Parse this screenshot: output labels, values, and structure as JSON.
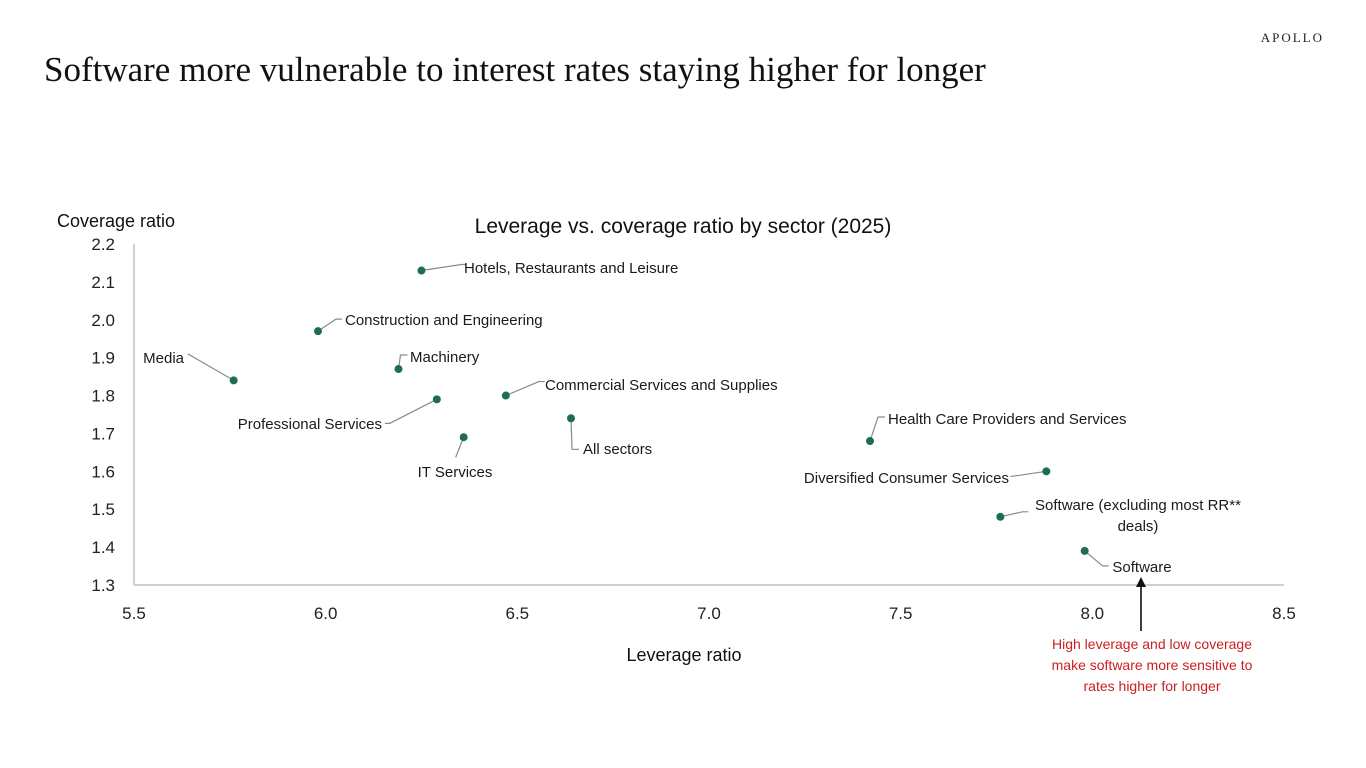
{
  "brand": "APOLLO",
  "page_title": "Software more vulnerable to interest rates staying higher for longer",
  "colors": {
    "point": "#1e6b5a",
    "leader": "#8a8a8a",
    "axis": "#bfbfbf",
    "note": "#cc1e1e"
  },
  "chart_data": {
    "type": "scatter",
    "title": "Leverage vs. coverage ratio by sector (2025)",
    "xlabel": "Leverage ratio",
    "ylabel": "Coverage ratio",
    "xlim": [
      5.5,
      8.5
    ],
    "ylim": [
      1.3,
      2.2
    ],
    "xticks": [
      "5.5",
      "6.0",
      "6.5",
      "7.0",
      "7.5",
      "8.0",
      "8.5"
    ],
    "yticks": [
      "1.3",
      "1.4",
      "1.5",
      "1.6",
      "1.7",
      "1.8",
      "1.9",
      "2.0",
      "2.1",
      "2.2"
    ],
    "grid": false,
    "points": [
      {
        "label": "Hotels, Restaurants and Leisure",
        "x": 6.25,
        "y": 2.13
      },
      {
        "label": "Construction and Engineering",
        "x": 5.98,
        "y": 1.97
      },
      {
        "label": "Media",
        "x": 5.76,
        "y": 1.84
      },
      {
        "label": "Machinery",
        "x": 6.19,
        "y": 1.87
      },
      {
        "label": "Commercial Services and Supplies",
        "x": 6.47,
        "y": 1.8
      },
      {
        "label": "Professional Services",
        "x": 6.29,
        "y": 1.79
      },
      {
        "label": "All sectors",
        "x": 6.64,
        "y": 1.74
      },
      {
        "label": "IT Services",
        "x": 6.36,
        "y": 1.69
      },
      {
        "label": "Health Care Providers and Services",
        "x": 7.42,
        "y": 1.68
      },
      {
        "label": "Diversified Consumer Services",
        "x": 7.88,
        "y": 1.6
      },
      {
        "label": "Software (excluding most RR** deals)",
        "x": 7.76,
        "y": 1.48
      },
      {
        "label": "Software",
        "x": 7.98,
        "y": 1.39
      }
    ],
    "annotation": {
      "lines": [
        "High leverage and low coverage",
        "make software more sensitive to",
        "rates higher for longer"
      ]
    }
  }
}
